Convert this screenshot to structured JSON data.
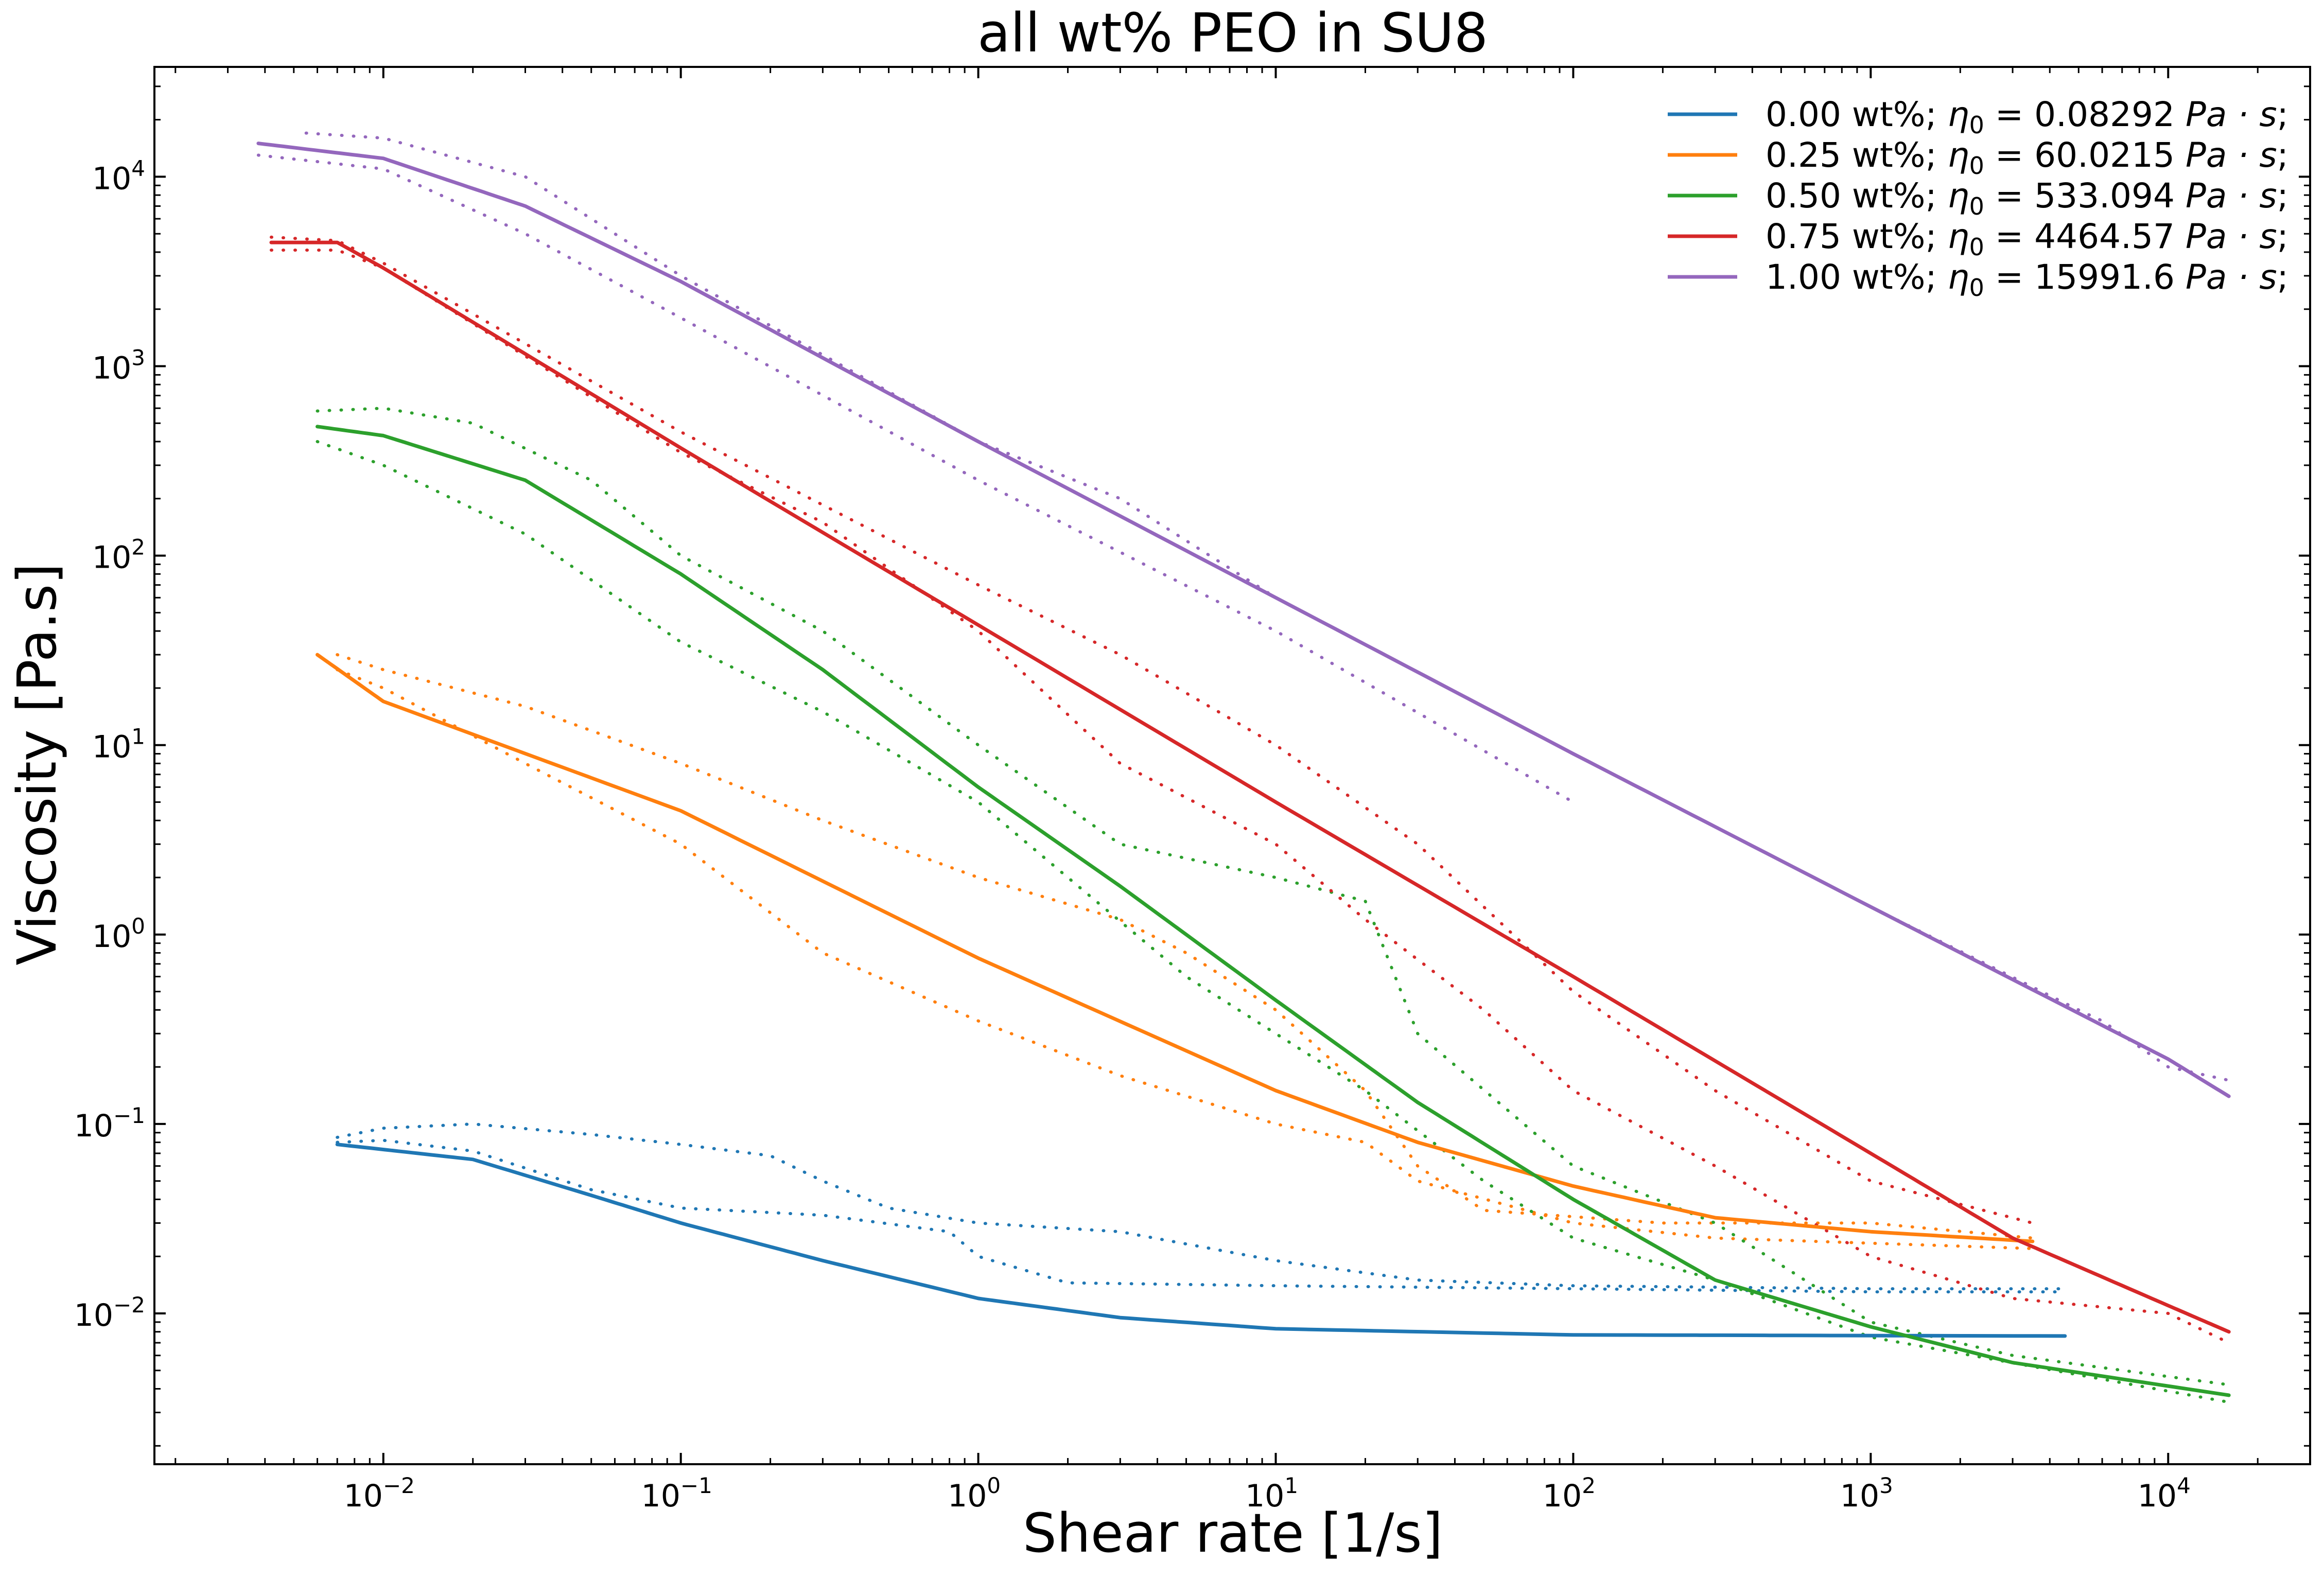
{
  "chart_data": {
    "type": "line",
    "title": "all wt% PEO in SU8",
    "xlabel": "Shear rate [1/s]",
    "ylabel": "Viscosity [Pa.s]",
    "xscale": "log",
    "yscale": "log",
    "xlim": [
      0.0017,
      30000
    ],
    "ylim": [
      0.0016,
      38000
    ],
    "x_ticks": [
      {
        "base": "10",
        "exp": "−2",
        "value": 0.01
      },
      {
        "base": "10",
        "exp": "−1",
        "value": 0.1
      },
      {
        "base": "10",
        "exp": "0",
        "value": 1
      },
      {
        "base": "10",
        "exp": "1",
        "value": 10
      },
      {
        "base": "10",
        "exp": "2",
        "value": 100
      },
      {
        "base": "10",
        "exp": "3",
        "value": 1000
      },
      {
        "base": "10",
        "exp": "4",
        "value": 10000
      }
    ],
    "y_ticks": [
      {
        "base": "10",
        "exp": "−2",
        "value": 0.01
      },
      {
        "base": "10",
        "exp": "−1",
        "value": 0.1
      },
      {
        "base": "10",
        "exp": "0",
        "value": 1
      },
      {
        "base": "10",
        "exp": "1",
        "value": 10
      },
      {
        "base": "10",
        "exp": "2",
        "value": 100
      },
      {
        "base": "10",
        "exp": "3",
        "value": 1000
      },
      {
        "base": "10",
        "exp": "4",
        "value": 10000
      }
    ],
    "grid": false,
    "legend_position": "top-right",
    "series": [
      {
        "name": "0.00 wt%; η0 = 0.08292 Pa · s;",
        "legend_prefix": "0.00 wt%; ",
        "legend_eta": "η",
        "legend_sub": "0",
        "legend_eq": " = 0.08292 ",
        "legend_unit": "Pa · s",
        "legend_suffix": ";",
        "color": "#1f77b4",
        "fit": [
          [
            0.007,
            0.078
          ],
          [
            0.02,
            0.065
          ],
          [
            0.05,
            0.042
          ],
          [
            0.1,
            0.03
          ],
          [
            0.3,
            0.019
          ],
          [
            1,
            0.012
          ],
          [
            3,
            0.0095
          ],
          [
            10,
            0.0083
          ],
          [
            100,
            0.0077
          ],
          [
            4500,
            0.0076
          ]
        ],
        "data_upper": [
          [
            0.007,
            0.085
          ],
          [
            0.01,
            0.095
          ],
          [
            0.02,
            0.1
          ],
          [
            0.05,
            0.088
          ],
          [
            0.1,
            0.078
          ],
          [
            0.2,
            0.068
          ],
          [
            0.3,
            0.05
          ],
          [
            0.5,
            0.036
          ],
          [
            1,
            0.03
          ],
          [
            3,
            0.027
          ],
          [
            10,
            0.019
          ],
          [
            30,
            0.015
          ],
          [
            100,
            0.014
          ],
          [
            1000,
            0.0135
          ],
          [
            4500,
            0.0135
          ]
        ],
        "data_lower": [
          [
            0.007,
            0.08
          ],
          [
            0.01,
            0.082
          ],
          [
            0.02,
            0.072
          ],
          [
            0.05,
            0.045
          ],
          [
            0.1,
            0.036
          ],
          [
            0.3,
            0.033
          ],
          [
            0.8,
            0.027
          ],
          [
            1,
            0.02
          ],
          [
            2,
            0.0145
          ],
          [
            10,
            0.014
          ],
          [
            100,
            0.0135
          ],
          [
            1000,
            0.013
          ],
          [
            4500,
            0.013
          ]
        ]
      },
      {
        "name": "0.25 wt%; η0 = 60.0215 Pa · s;",
        "legend_prefix": "0.25 wt%; ",
        "legend_eta": "η",
        "legend_sub": "0",
        "legend_eq": " = 60.0215 ",
        "legend_unit": "Pa · s",
        "legend_suffix": ";",
        "color": "#ff7f0e",
        "fit": [
          [
            0.006,
            30
          ],
          [
            0.01,
            17
          ],
          [
            0.1,
            4.5
          ],
          [
            1,
            0.75
          ],
          [
            10,
            0.15
          ],
          [
            30,
            0.08
          ],
          [
            100,
            0.047
          ],
          [
            300,
            0.032
          ],
          [
            1000,
            0.027
          ],
          [
            3500,
            0.024
          ]
        ],
        "data_upper": [
          [
            0.007,
            30
          ],
          [
            0.01,
            25
          ],
          [
            0.03,
            16
          ],
          [
            0.1,
            8
          ],
          [
            0.3,
            4
          ],
          [
            1,
            2
          ],
          [
            3,
            1.2
          ],
          [
            5,
            0.8
          ],
          [
            10,
            0.4
          ],
          [
            20,
            0.15
          ],
          [
            30,
            0.06
          ],
          [
            50,
            0.035
          ],
          [
            200,
            0.03
          ],
          [
            1000,
            0.03
          ],
          [
            3500,
            0.025
          ]
        ],
        "data_lower": [
          [
            0.007,
            25
          ],
          [
            0.01,
            20
          ],
          [
            0.03,
            8
          ],
          [
            0.1,
            3
          ],
          [
            0.3,
            0.8
          ],
          [
            1,
            0.35
          ],
          [
            3,
            0.18
          ],
          [
            10,
            0.1
          ],
          [
            20,
            0.08
          ],
          [
            30,
            0.05
          ],
          [
            100,
            0.03
          ],
          [
            300,
            0.025
          ],
          [
            3500,
            0.022
          ]
        ]
      },
      {
        "name": "0.50 wt%; η0 = 533.094 Pa · s;",
        "legend_prefix": "0.50 wt%; ",
        "legend_eta": "η",
        "legend_sub": "0",
        "legend_eq": " = 533.094 ",
        "legend_unit": "Pa · s",
        "legend_suffix": ";",
        "color": "#2ca02c",
        "fit": [
          [
            0.006,
            480
          ],
          [
            0.01,
            430
          ],
          [
            0.03,
            250
          ],
          [
            0.1,
            80
          ],
          [
            0.3,
            25
          ],
          [
            1,
            6
          ],
          [
            3,
            1.8
          ],
          [
            10,
            0.45
          ],
          [
            30,
            0.13
          ],
          [
            100,
            0.04
          ],
          [
            300,
            0.015
          ],
          [
            1000,
            0.0085
          ],
          [
            3000,
            0.0055
          ],
          [
            16000,
            0.0037
          ]
        ],
        "data_upper": [
          [
            0.006,
            580
          ],
          [
            0.01,
            600
          ],
          [
            0.02,
            500
          ],
          [
            0.05,
            250
          ],
          [
            0.1,
            100
          ],
          [
            0.3,
            40
          ],
          [
            1,
            10
          ],
          [
            3,
            3
          ],
          [
            10,
            2
          ],
          [
            20,
            1.5
          ],
          [
            30,
            0.3
          ],
          [
            100,
            0.06
          ],
          [
            300,
            0.03
          ],
          [
            1000,
            0.009
          ],
          [
            3000,
            0.006
          ],
          [
            16000,
            0.0042
          ]
        ],
        "data_lower": [
          [
            0.006,
            400
          ],
          [
            0.01,
            300
          ],
          [
            0.03,
            130
          ],
          [
            0.1,
            35
          ],
          [
            0.3,
            15
          ],
          [
            1,
            5
          ],
          [
            2,
            2
          ],
          [
            5,
            0.6
          ],
          [
            10,
            0.3
          ],
          [
            20,
            0.15
          ],
          [
            50,
            0.05
          ],
          [
            100,
            0.025
          ],
          [
            300,
            0.015
          ],
          [
            1000,
            0.0075
          ],
          [
            16000,
            0.0034
          ]
        ]
      },
      {
        "name": "0.75 wt%; η0 = 4464.57 Pa · s;",
        "legend_prefix": "0.75 wt%; ",
        "legend_eta": "η",
        "legend_sub": "0",
        "legend_eq": " = 4464.57 ",
        "legend_unit": "Pa · s",
        "legend_suffix": ";",
        "color": "#d62728",
        "fit": [
          [
            0.0042,
            4500
          ],
          [
            0.007,
            4500
          ],
          [
            0.01,
            3300
          ],
          [
            0.1,
            370
          ],
          [
            1,
            43
          ],
          [
            10,
            5
          ],
          [
            100,
            0.6
          ],
          [
            1000,
            0.07
          ],
          [
            3000,
            0.025
          ],
          [
            10000,
            0.011
          ],
          [
            16000,
            0.008
          ]
        ],
        "data_upper": [
          [
            0.0042,
            4800
          ],
          [
            0.007,
            4600
          ],
          [
            0.01,
            3500
          ],
          [
            0.1,
            450
          ],
          [
            1,
            70
          ],
          [
            3,
            30
          ],
          [
            10,
            10
          ],
          [
            30,
            3
          ],
          [
            100,
            0.5
          ],
          [
            300,
            0.15
          ],
          [
            1000,
            0.05
          ],
          [
            3500,
            0.03
          ]
        ],
        "data_lower": [
          [
            0.0042,
            4100
          ],
          [
            0.007,
            4100
          ],
          [
            0.01,
            3300
          ],
          [
            0.1,
            350
          ],
          [
            0.3,
            150
          ],
          [
            1,
            40
          ],
          [
            3,
            8
          ],
          [
            10,
            3
          ],
          [
            20,
            1.2
          ],
          [
            50,
            0.4
          ],
          [
            100,
            0.15
          ],
          [
            300,
            0.06
          ],
          [
            1000,
            0.02
          ],
          [
            3000,
            0.012
          ],
          [
            10000,
            0.01
          ],
          [
            16000,
            0.007
          ]
        ]
      },
      {
        "name": "1.00 wt%; η0 = 15991.6 Pa · s;",
        "legend_prefix": "1.00 wt%; ",
        "legend_eta": "η",
        "legend_sub": "0",
        "legend_eq": " = 15991.6 ",
        "legend_unit": "Pa · s",
        "legend_suffix": ";",
        "color": "#9467bd",
        "fit": [
          [
            0.0038,
            15000
          ],
          [
            0.01,
            12500
          ],
          [
            0.03,
            7000
          ],
          [
            0.1,
            2800
          ],
          [
            1,
            400
          ],
          [
            10,
            60
          ],
          [
            100,
            9
          ],
          [
            1000,
            1.4
          ],
          [
            10000,
            0.22
          ],
          [
            16000,
            0.14
          ]
        ],
        "data_upper": [
          [
            0.0055,
            17000
          ],
          [
            0.01,
            16000
          ],
          [
            0.03,
            10000
          ],
          [
            0.1,
            3000
          ],
          [
            1,
            400
          ],
          [
            3,
            200
          ],
          [
            10,
            60
          ],
          [
            100,
            9
          ],
          [
            1000,
            1.4
          ],
          [
            5000,
            0.4
          ],
          [
            6000,
            0.35
          ],
          [
            10000,
            0.2
          ],
          [
            16000,
            0.17
          ]
        ],
        "data_lower": [
          [
            0.0038,
            13000
          ],
          [
            0.01,
            11000
          ],
          [
            0.03,
            5000
          ],
          [
            0.1,
            1800
          ],
          [
            1,
            250
          ],
          [
            10,
            40
          ],
          [
            100,
            5
          ]
        ]
      }
    ]
  }
}
